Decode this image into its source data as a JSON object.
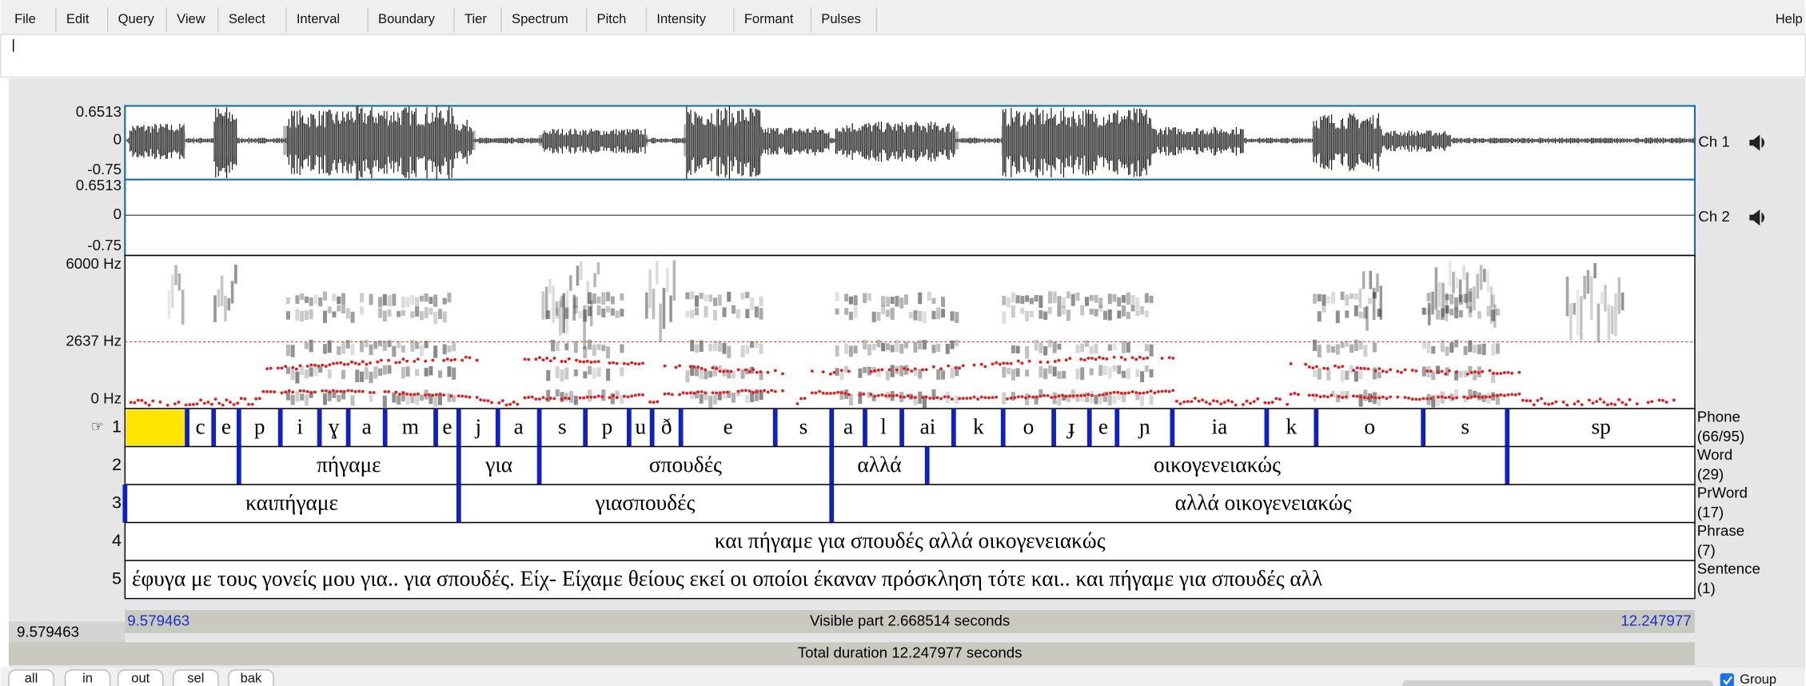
{
  "menu": {
    "items": [
      "File",
      "Edit",
      "Query",
      "View",
      "Select",
      "Interval",
      "Boundary",
      "Tier",
      "Spectrum",
      "Pitch",
      "Intensity",
      "Formant",
      "Pulses"
    ],
    "help": "Help"
  },
  "channels": [
    {
      "top": "0.6513",
      "zero": "0",
      "bottom": "-0.75",
      "label": "Ch 1"
    },
    {
      "top": "0.6513",
      "zero": "0",
      "bottom": "-0.75",
      "label": "Ch 2"
    }
  ],
  "spectrogram": {
    "top": "6000 Hz",
    "cursor": "2637 Hz",
    "bottom": "0 Hz"
  },
  "tiers": [
    {
      "pointer": "☞",
      "number": "1",
      "name": "Phone",
      "count": "(66/95)",
      "labels": [
        "c",
        "e",
        "p",
        "i",
        "ɣ",
        "a",
        "m",
        "e",
        "j",
        "a",
        "s",
        "p",
        "u",
        "ð",
        "e",
        "s",
        "a",
        "l",
        "ai",
        "k",
        "o",
        "ɟ",
        "e",
        "ɲ",
        "ia",
        "k",
        "o",
        "s",
        "sp"
      ]
    },
    {
      "number": "2",
      "name": "Word",
      "count": "(29)",
      "labels": [
        "πήγαμε",
        "για",
        "σπουδές",
        "αλλά",
        "οικογενειακώς"
      ]
    },
    {
      "number": "3",
      "name": "PrWord",
      "count": "(17)",
      "labels": [
        "καιπήγαμε",
        "γιασπουδές",
        "αλλά οικογενειακώς"
      ]
    },
    {
      "number": "4",
      "name": "Phrase",
      "count": "(7)",
      "labels": [
        "και πήγαμε για σπουδές αλλά οικογενειακώς"
      ]
    },
    {
      "number": "5",
      "name": "Sentence",
      "count": "(1)",
      "labels": [
        "έφυγα με τους γονείς μου για.. για σπουδές. Είχ- Είχαμε θείους εκεί οι οποίοι έκαναν πρόσκληση τότε και.. και πήγαμε για σπουδές αλλ"
      ]
    }
  ],
  "time": {
    "cursor": "9.579463",
    "start": "9.579463",
    "visible": "Visible part 2.668514 seconds",
    "end": "12.247977",
    "total": "Total duration 12.247977 seconds"
  },
  "buttons": [
    "all",
    "in",
    "out",
    "sel",
    "bak"
  ],
  "group": "Group"
}
